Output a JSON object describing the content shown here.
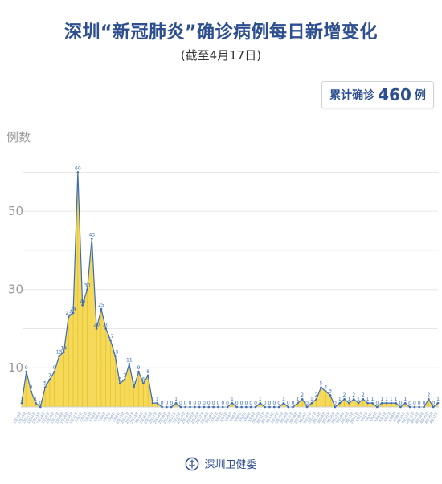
{
  "header": {
    "title": "深圳“新冠肺炎”确诊病例每日新增变化",
    "subtitle": "(截至4月17日)"
  },
  "total_box": {
    "label": "累计确诊",
    "value": "460",
    "unit": "例"
  },
  "footer": {
    "org": "深圳卫健委"
  },
  "colors": {
    "area": "#f5d547",
    "grid_line": "#c9a800",
    "line": "#3b6cb8",
    "title": "#2e4f8f"
  },
  "chart_data": {
    "type": "area",
    "title": "深圳“新冠肺炎”确诊病例每日新增变化",
    "subtitle": "(截至4月17日)",
    "ylabel": "例数",
    "xlabel": "",
    "ylim": [
      0,
      65
    ],
    "yticks": [
      10,
      30,
      50
    ],
    "grid": true,
    "categories": [
      "1月19日",
      "1月20日",
      "1月21日",
      "1月22日",
      "1月23日",
      "1月24日",
      "1月25日",
      "1月26日",
      "1月27日",
      "1月28日",
      "1月29日",
      "1月30日",
      "1月31日",
      "2月1日",
      "2月2日",
      "2月3日",
      "2月4日",
      "2月5日",
      "2月6日",
      "2月7日",
      "2月8日",
      "2月9日",
      "2月10日",
      "2月11日",
      "2月12日",
      "2月13日",
      "2月14日",
      "2月15日",
      "2月16日",
      "2月17日",
      "2月18日",
      "2月19日",
      "2月20日",
      "2月21日",
      "2月22日",
      "2月23日",
      "2月24日",
      "2月25日",
      "2月26日",
      "2月27日",
      "2月28日",
      "2月29日",
      "3月1日",
      "3月2日",
      "3月3日",
      "3月4日",
      "3月5日",
      "3月6日",
      "3月7日",
      "3月8日",
      "3月9日",
      "3月10日",
      "3月11日",
      "3月12日",
      "3月13日",
      "3月14日",
      "3月15日",
      "3月16日",
      "3月17日",
      "3月18日",
      "3月19日",
      "3月20日",
      "3月21日",
      "3月22日",
      "3月23日",
      "3月24日",
      "3月25日",
      "3月26日",
      "3月27日",
      "3月28日",
      "3月29日",
      "3月30日",
      "3月31日",
      "4月1日",
      "4月2日",
      "4月3日",
      "4月4日",
      "4月5日",
      "4月6日",
      "4月7日",
      "4月8日",
      "4月9日",
      "4月10日",
      "4月11日",
      "4月12日",
      "4月13日",
      "4月14日",
      "4月15日",
      "4月16日",
      "4月17日"
    ],
    "values": [
      1,
      9,
      4,
      1,
      0,
      5,
      7,
      9,
      13,
      14,
      23,
      24,
      60,
      26,
      30,
      43,
      20,
      25,
      20,
      17,
      13,
      6,
      7,
      11,
      5,
      9,
      6,
      8,
      1,
      1,
      0,
      0,
      0,
      1,
      0,
      0,
      0,
      0,
      0,
      0,
      0,
      0,
      0,
      0,
      0,
      1,
      0,
      0,
      0,
      0,
      0,
      1,
      0,
      0,
      0,
      0,
      1,
      0,
      0,
      1,
      2,
      0,
      1,
      2,
      5,
      4,
      3,
      0,
      1,
      2,
      1,
      2,
      1,
      2,
      1,
      1,
      0,
      1,
      1,
      1,
      1,
      0,
      1,
      0,
      0,
      0,
      0,
      2,
      0,
      1
    ]
  }
}
